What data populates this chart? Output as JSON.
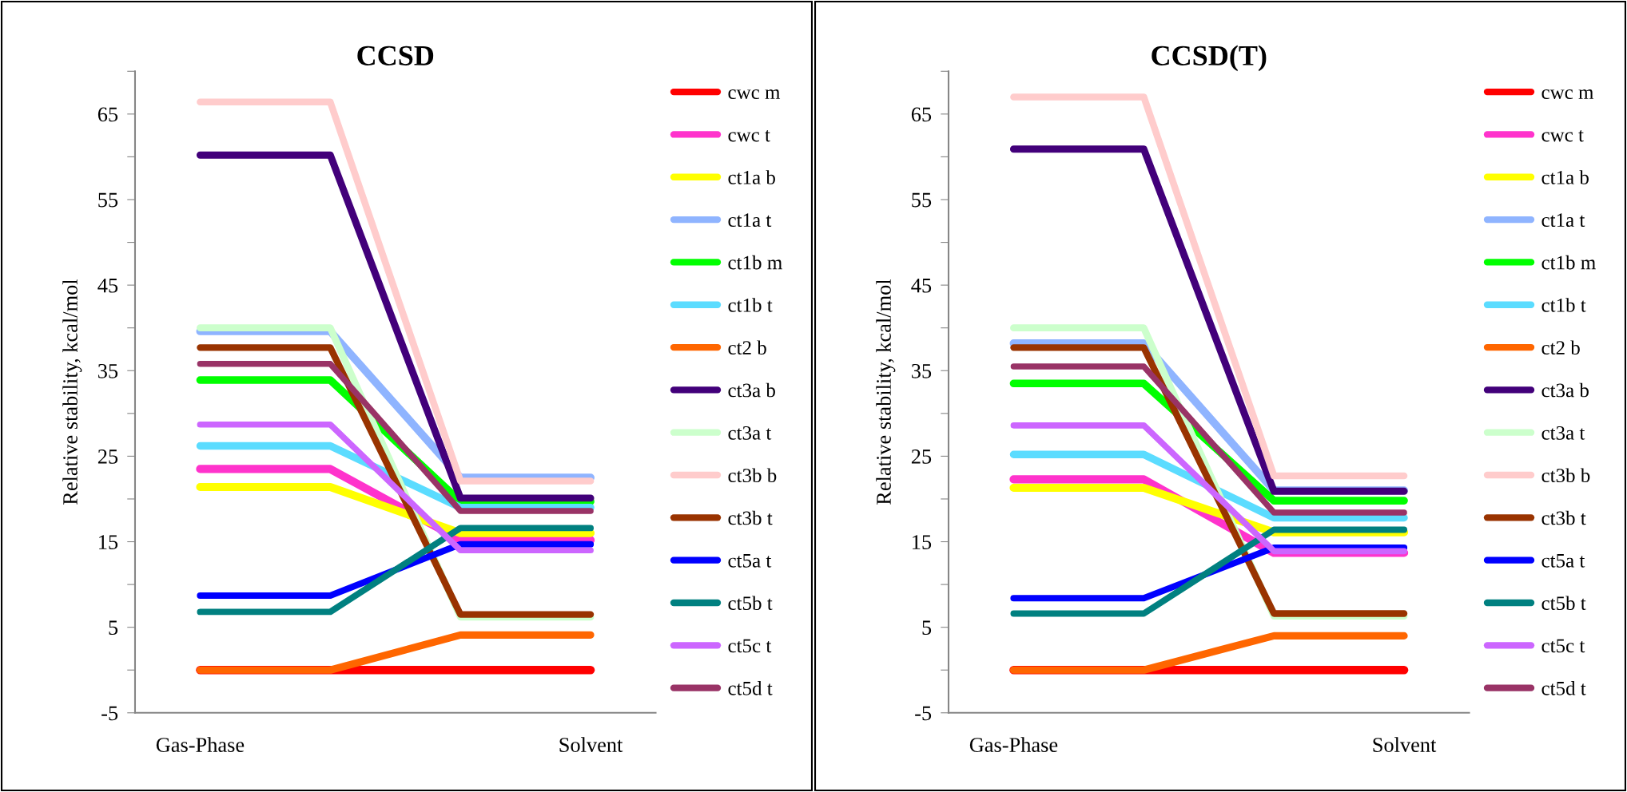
{
  "chart_data": [
    {
      "type": "line",
      "title": "CCSD",
      "ylabel": "Relative stability, kcal/mol",
      "categories": [
        "Gas-Phase",
        null,
        null,
        "Solvent"
      ],
      "ylim": [
        -5,
        70
      ],
      "yticks": [
        -5,
        {
          "value": 0,
          "label": null
        },
        5,
        {
          "value": 10,
          "label": null
        },
        15,
        {
          "value": 20,
          "label": null
        },
        25,
        {
          "value": 30,
          "label": null
        },
        35,
        {
          "value": 40,
          "label": null
        },
        45,
        {
          "value": 50,
          "label": null
        },
        55,
        {
          "value": 60,
          "label": null
        },
        65,
        {
          "value": 70,
          "label": null
        }
      ],
      "legend": "right",
      "series": [
        {
          "name": "cwc m",
          "color": "#ff0000",
          "values": [
            0,
            0,
            0,
            0
          ]
        },
        {
          "name": "cwc t",
          "color": "#ff33cc",
          "values": [
            23.5,
            23.5,
            15.2,
            15.2
          ]
        },
        {
          "name": "ct1a b",
          "color": "#ffff00",
          "values": [
            21.4,
            21.4,
            16.0,
            16.0
          ]
        },
        {
          "name": "ct1a t",
          "color": "#8fb4ff",
          "values": [
            39.6,
            39.6,
            22.5,
            22.5
          ]
        },
        {
          "name": "ct1b m",
          "color": "#00ff00",
          "values": [
            33.9,
            33.9,
            19.7,
            19.7
          ]
        },
        {
          "name": "ct1b t",
          "color": "#5bdcff",
          "values": [
            26.2,
            26.2,
            19.0,
            19.0
          ]
        },
        {
          "name": "ct2 b",
          "color": "#ff6600",
          "values": [
            0,
            0,
            4.1,
            4.1
          ]
        },
        {
          "name": "ct3a b",
          "color": "#42007a",
          "values": [
            60.2,
            60.2,
            20.1,
            20.1
          ]
        },
        {
          "name": "ct3a t",
          "color": "#ccffcc",
          "values": [
            40.0,
            40.0,
            6.2,
            6.2
          ]
        },
        {
          "name": "ct3b b",
          "color": "#ffcccc",
          "values": [
            66.4,
            66.4,
            22.1,
            22.1
          ]
        },
        {
          "name": "ct3b t",
          "color": "#993300",
          "values": [
            37.7,
            37.7,
            6.5,
            6.5
          ]
        },
        {
          "name": "ct5a t",
          "color": "#0000ff",
          "values": [
            8.7,
            8.7,
            14.7,
            14.7
          ]
        },
        {
          "name": "ct5b t",
          "color": "#008080",
          "values": [
            6.8,
            6.8,
            16.6,
            16.6
          ]
        },
        {
          "name": "ct5c t",
          "color": "#cc66ff",
          "values": [
            28.7,
            28.7,
            14.0,
            14.0
          ]
        },
        {
          "name": "ct5d t",
          "color": "#993366",
          "values": [
            35.8,
            35.8,
            18.6,
            18.6
          ]
        }
      ]
    },
    {
      "type": "line",
      "title": "CCSD(T)",
      "ylabel": "Relative stability, kcal/mol",
      "categories": [
        "Gas-Phase",
        null,
        null,
        "Solvent"
      ],
      "ylim": [
        -5,
        70
      ],
      "yticks": [
        -5,
        {
          "value": 0,
          "label": null
        },
        5,
        {
          "value": 10,
          "label": null
        },
        15,
        {
          "value": 20,
          "label": null
        },
        25,
        {
          "value": 30,
          "label": null
        },
        35,
        {
          "value": 40,
          "label": null
        },
        45,
        {
          "value": 50,
          "label": null
        },
        55,
        {
          "value": 60,
          "label": null
        },
        65,
        {
          "value": 70,
          "label": null
        }
      ],
      "legend": "right",
      "series": [
        {
          "name": "cwc m",
          "color": "#ff0000",
          "values": [
            0,
            0,
            0,
            0
          ]
        },
        {
          "name": "cwc t",
          "color": "#ff33cc",
          "values": [
            22.3,
            22.3,
            13.7,
            13.7
          ]
        },
        {
          "name": "ct1a b",
          "color": "#ffff00",
          "values": [
            21.3,
            21.3,
            16.1,
            16.1
          ]
        },
        {
          "name": "ct1a t",
          "color": "#8fb4ff",
          "values": [
            38.2,
            38.2,
            21.0,
            21.0
          ]
        },
        {
          "name": "ct1b m",
          "color": "#00ff00",
          "values": [
            33.5,
            33.5,
            19.8,
            19.8
          ]
        },
        {
          "name": "ct1b t",
          "color": "#5bdcff",
          "values": [
            25.2,
            25.2,
            17.8,
            17.8
          ]
        },
        {
          "name": "ct2 b",
          "color": "#ff6600",
          "values": [
            0,
            0,
            4.0,
            4.0
          ]
        },
        {
          "name": "ct3a b",
          "color": "#42007a",
          "values": [
            60.9,
            60.9,
            20.9,
            20.9
          ]
        },
        {
          "name": "ct3a t",
          "color": "#ccffcc",
          "values": [
            40.0,
            40.0,
            6.3,
            6.3
          ]
        },
        {
          "name": "ct3b b",
          "color": "#ffcccc",
          "values": [
            67.0,
            67.0,
            22.7,
            22.7
          ]
        },
        {
          "name": "ct3b t",
          "color": "#993300",
          "values": [
            37.7,
            37.7,
            6.6,
            6.6
          ]
        },
        {
          "name": "ct5a t",
          "color": "#0000ff",
          "values": [
            8.4,
            8.4,
            14.3,
            14.3
          ]
        },
        {
          "name": "ct5b t",
          "color": "#008080",
          "values": [
            6.6,
            6.6,
            16.4,
            16.4
          ]
        },
        {
          "name": "ct5c t",
          "color": "#cc66ff",
          "values": [
            28.6,
            28.6,
            13.9,
            13.9
          ]
        },
        {
          "name": "ct5d t",
          "color": "#993366",
          "values": [
            35.5,
            35.5,
            18.4,
            18.4
          ]
        }
      ]
    }
  ]
}
